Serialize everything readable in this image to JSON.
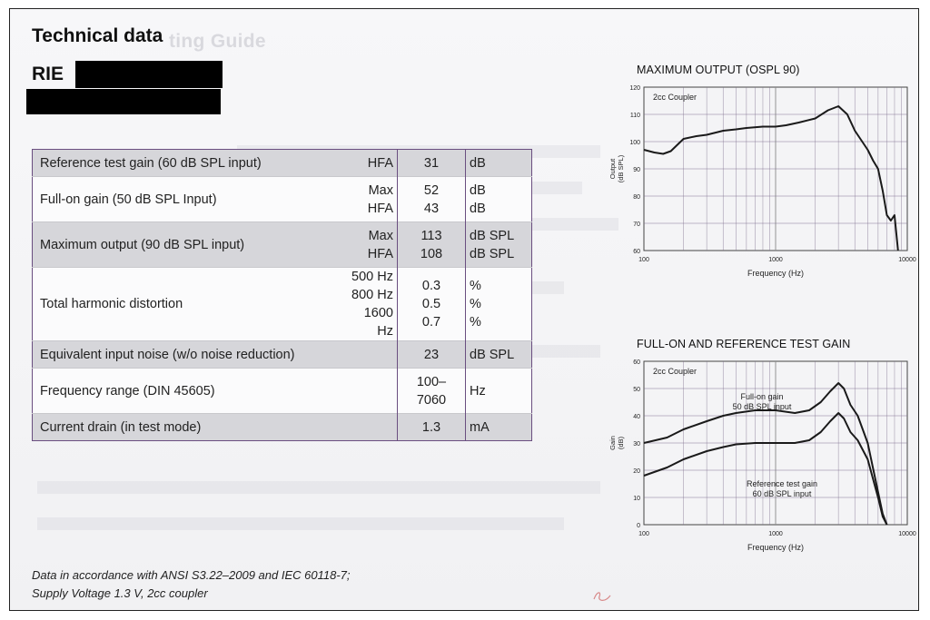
{
  "header": {
    "title": "Technical data",
    "model_prefix": "RIE",
    "ghost_heading": "ting Guide"
  },
  "table": {
    "rows": [
      {
        "label": "Reference test gain (60 dB SPL input)",
        "subs": [
          "HFA"
        ],
        "values": [
          "31"
        ],
        "units": [
          "dB"
        ],
        "shaded": true
      },
      {
        "label": "Full-on gain (50 dB SPL Input)",
        "subs": [
          "Max",
          "HFA"
        ],
        "values": [
          "52",
          "43"
        ],
        "units": [
          "dB",
          "dB"
        ],
        "shaded": false
      },
      {
        "label": "Maximum output (90 dB SPL input)",
        "subs": [
          "Max",
          "HFA"
        ],
        "values": [
          "113",
          "108"
        ],
        "units": [
          "dB SPL",
          "dB SPL"
        ],
        "shaded": true
      },
      {
        "label": "Total harmonic distortion",
        "subs": [
          "500 Hz",
          "800 Hz",
          "1600 Hz"
        ],
        "values": [
          "0.3",
          "0.5",
          "0.7"
        ],
        "units": [
          "%",
          "%",
          "%"
        ],
        "shaded": false
      },
      {
        "label": "Equivalent input noise (w/o noise reduction)",
        "subs": [],
        "values": [
          "23"
        ],
        "units": [
          "dB SPL"
        ],
        "shaded": true
      },
      {
        "label": "Frequency range (DIN 45605)",
        "subs": [],
        "values": [
          "100–",
          "7060"
        ],
        "units": [
          "Hz"
        ],
        "shaded": false
      },
      {
        "label": "Current drain (in test mode)",
        "subs": [],
        "values": [
          "1.3"
        ],
        "units": [
          "mA"
        ],
        "shaded": true
      }
    ]
  },
  "footnote": {
    "line1": "Data in accordance with ANSI S3.22–2009 and IEC 60118-7;",
    "line2": "Supply Voltage 1.3 V, 2cc coupler"
  },
  "colors": {
    "table_border": "#6a4e80",
    "shade": "#d6d6da",
    "curve": "#1a1a1a",
    "grid": "#8a8a8a",
    "minor_grid": "#7a6a8a"
  },
  "chart_data": [
    {
      "type": "line",
      "title": "MAXIMUM OUTPUT (OSPL 90)",
      "xlabel": "Frequency (Hz)",
      "ylabel": "Output\n(dB SPL)",
      "annotation": "2cc Coupler",
      "x_scale": "log",
      "xlim": [
        100,
        10000
      ],
      "ylim": [
        60,
        120
      ],
      "x_ticks": [
        "100",
        "1000",
        "10000"
      ],
      "y_ticks": [
        "60",
        "70",
        "80",
        "90",
        "100",
        "110",
        "120"
      ],
      "grid": true,
      "series": [
        {
          "name": "",
          "x": [
            100,
            120,
            140,
            160,
            200,
            250,
            300,
            400,
            500,
            600,
            800,
            1000,
            1200,
            1500,
            2000,
            2500,
            3000,
            3500,
            4000,
            5000,
            5500,
            6000,
            6500,
            7000,
            7500,
            8000,
            8500
          ],
          "y": [
            97,
            96,
            95.5,
            96.5,
            101,
            102,
            102.5,
            104,
            104.5,
            105,
            105.5,
            105.5,
            106,
            107,
            108.5,
            111.5,
            113,
            110,
            104,
            97,
            93,
            90,
            82,
            73,
            71,
            73,
            60
          ]
        }
      ]
    },
    {
      "type": "line",
      "title": "FULL-ON AND REFERENCE TEST GAIN",
      "xlabel": "Frequency (Hz)",
      "ylabel": "Gain\n(dB)",
      "annotation": "2cc Coupler",
      "x_scale": "log",
      "xlim": [
        100,
        10000
      ],
      "ylim": [
        0,
        60
      ],
      "x_ticks": [
        "100",
        "1000",
        "10000"
      ],
      "y_ticks": [
        "0",
        "10",
        "20",
        "30",
        "40",
        "50",
        "60"
      ],
      "grid": true,
      "series": [
        {
          "name": "Full-on gain\n50 dB SPL input",
          "x": [
            100,
            150,
            200,
            300,
            400,
            500,
            700,
            1000,
            1400,
            1800,
            2200,
            2600,
            3000,
            3300,
            3700,
            4200,
            5000,
            6000,
            6500,
            7000
          ],
          "y": [
            30,
            32,
            35,
            38,
            40,
            41,
            42,
            42,
            41,
            42,
            45,
            49,
            52,
            50,
            44,
            40,
            30,
            12,
            4,
            0
          ]
        },
        {
          "name": "Reference test gain\n60 dB SPL input",
          "x": [
            100,
            150,
            200,
            300,
            400,
            500,
            700,
            1000,
            1400,
            1800,
            2200,
            2600,
            3000,
            3300,
            3700,
            4200,
            5000,
            6000,
            6500,
            7000
          ],
          "y": [
            18,
            21,
            24,
            27,
            28.5,
            29.5,
            30,
            30,
            30,
            31,
            34,
            38,
            41,
            39,
            34,
            31,
            24,
            10,
            3,
            0
          ]
        }
      ]
    }
  ]
}
